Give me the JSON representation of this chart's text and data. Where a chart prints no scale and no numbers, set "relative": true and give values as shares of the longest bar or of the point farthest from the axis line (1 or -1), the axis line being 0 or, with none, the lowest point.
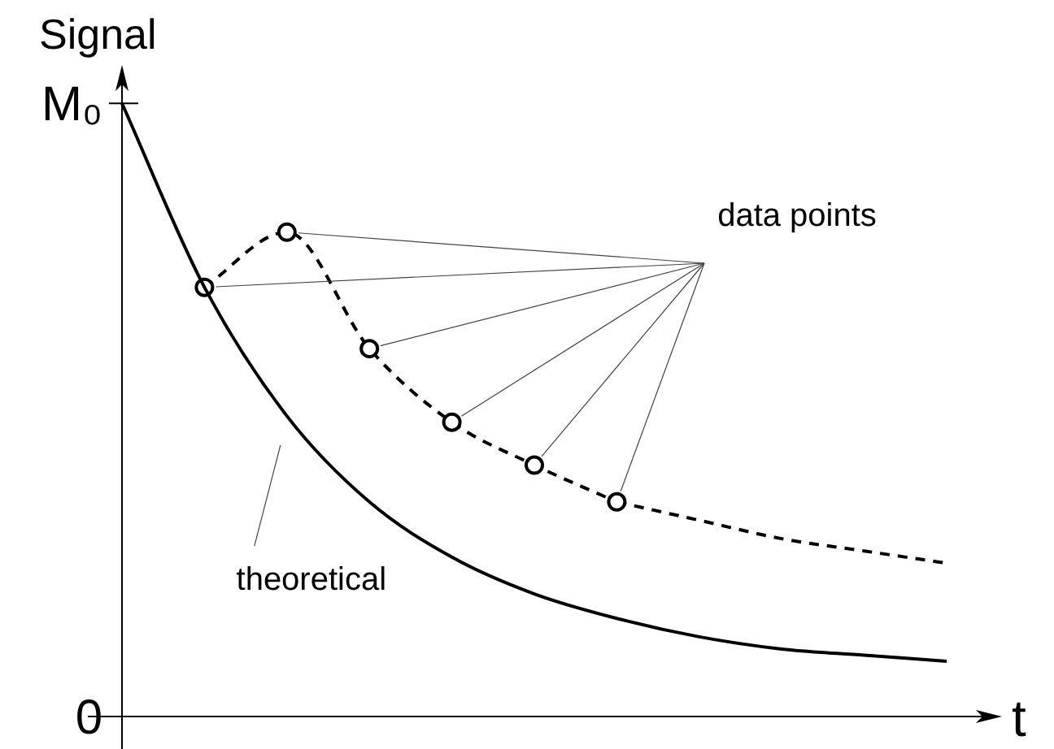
{
  "chart_data": {
    "type": "line",
    "ylabel": "Signal",
    "xlabel": "t",
    "relative": true,
    "categories": [
      null,
      null,
      null,
      null,
      null,
      null,
      null,
      null,
      null,
      null,
      null
    ],
    "annotations": [
      "M₀",
      "0"
    ],
    "marker": "none",
    "series": [
      {
        "name": "theoretical",
        "type": "line",
        "color": "#000000",
        "line_style": "solid",
        "values": [
          1.0,
          0.7,
          0.49,
          0.35,
          0.26,
          0.2,
          0.16,
          0.13,
          0.11,
          0.1,
          0.09
        ]
      },
      {
        "name": "data points",
        "type": "line",
        "color": "#000000",
        "line_style": "dashed",
        "marker": "circle",
        "values": [
          null,
          0.7,
          0.79,
          0.6,
          0.48,
          0.41,
          0.35,
          null,
          null,
          null,
          null
        ]
      },
      {
        "type": "line",
        "color": "#000000",
        "line_style": "dashed",
        "values": [
          null,
          null,
          null,
          null,
          null,
          null,
          0.35,
          0.32,
          0.29,
          0.27,
          0.25
        ]
      }
    ]
  }
}
